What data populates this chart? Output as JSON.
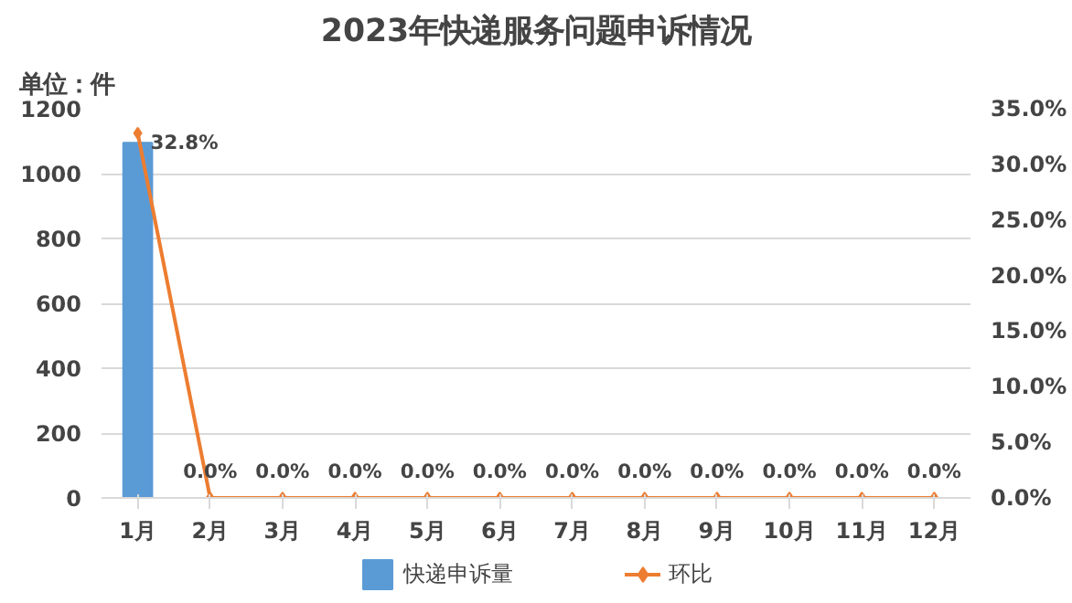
{
  "chart_data": {
    "type": "bar",
    "title": "2023年快递服务问题申诉情况",
    "annotations": [
      "单位：件"
    ],
    "categories": [
      "1月",
      "2月",
      "3月",
      "4月",
      "5月",
      "6月",
      "7月",
      "8月",
      "9月",
      "10月",
      "11月",
      "12月"
    ],
    "series": [
      {
        "name": "快递申诉量",
        "type": "bar",
        "color": "#5b9bd5",
        "values": [
          1095,
          0,
          0,
          0,
          0,
          0,
          0,
          0,
          0,
          0,
          0,
          0
        ]
      },
      {
        "name": "环比",
        "type": "line",
        "axis": "y2",
        "color": "#ed7d31",
        "marker": "diamond",
        "values": [
          32.8,
          0,
          0,
          0,
          0,
          0,
          0,
          0,
          0,
          0,
          0,
          0
        ],
        "value_labels": [
          "32.8%",
          "0.0%",
          "0.0%",
          "0.0%",
          "0.0%",
          "0.0%",
          "0.0%",
          "0.0%",
          "0.0%",
          "0.0%",
          "0.0%",
          "0.0%"
        ]
      }
    ],
    "ylim": [
      0,
      1200
    ],
    "yticks": [
      0,
      200,
      400,
      600,
      800,
      1000,
      1200
    ],
    "y2lim": [
      0,
      35
    ],
    "y2ticks": [
      {
        "value": 0,
        "label": "0.0%"
      },
      {
        "value": 5,
        "label": "5.0%"
      },
      {
        "value": 10,
        "label": "10.0%"
      },
      {
        "value": 15,
        "label": "15.0%"
      },
      {
        "value": 20,
        "label": "20.0%"
      },
      {
        "value": 25,
        "label": "25.0%"
      },
      {
        "value": 30,
        "label": "30.0%"
      },
      {
        "value": 35,
        "label": "35.0%"
      }
    ],
    "grid": "y",
    "legend": "bottom"
  }
}
